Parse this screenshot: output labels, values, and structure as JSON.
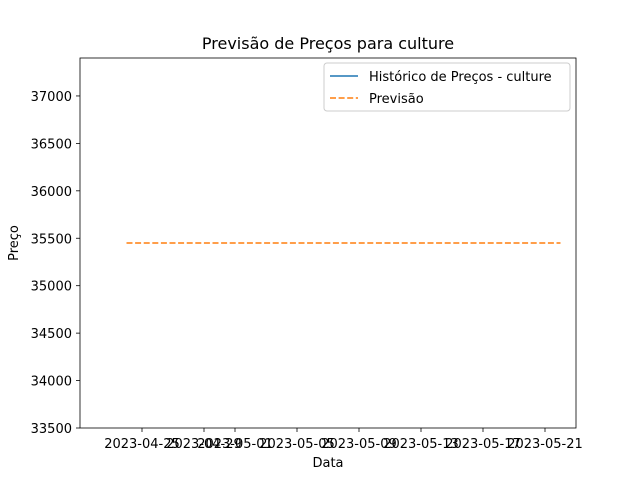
{
  "chart_data": {
    "type": "line",
    "title": "Previsão de Preços para culture",
    "xlabel": "Data",
    "ylabel": "Preço",
    "ylim": [
      33500,
      37400
    ],
    "xlim": [
      "2023-04-21",
      "2023-05-23"
    ],
    "x_ticks": [
      "2023-04-25",
      "2023-04-29",
      "2023-05-01",
      "2023-05-05",
      "2023-05-09",
      "2023-05-13",
      "2023-05-17",
      "2023-05-21"
    ],
    "y_ticks": [
      33500,
      34000,
      34500,
      35000,
      35500,
      36000,
      36500,
      37000
    ],
    "grid": false,
    "legend": {
      "placement": "top-right"
    },
    "series": [
      {
        "name": "Histórico de Preços - culture",
        "style": "solid",
        "color": "#1f77b4",
        "x": [],
        "values": []
      },
      {
        "name": "Previsão",
        "style": "dashed",
        "color": "#ff7f0e",
        "x": [
          "2023-04-24",
          "2023-05-22"
        ],
        "values": [
          35450,
          35450
        ]
      }
    ]
  }
}
